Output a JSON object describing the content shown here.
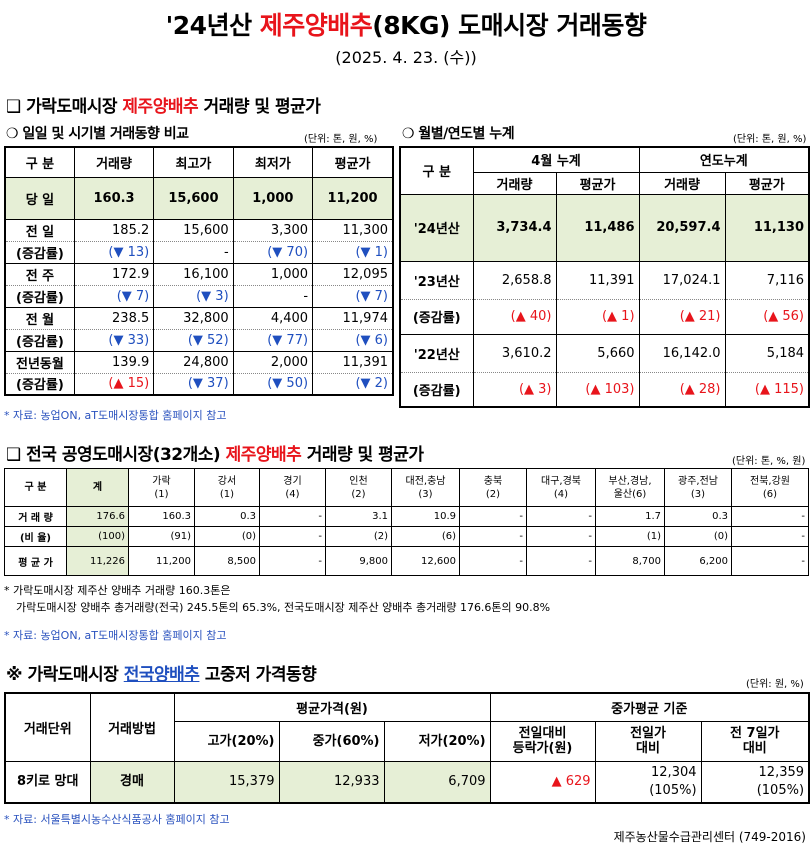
{
  "header": {
    "title_prefix": "'24년산 ",
    "title_red": "제주양배추",
    "title_suffix": "(8KG) 도매시장 거래동향",
    "date": "(2025. 4. 23. (수))"
  },
  "section1": {
    "title_prefix": "❑ 가락도매시장 ",
    "title_red": "제주양배추",
    "title_suffix": " 거래량 및 평균가",
    "daily": {
      "subtitle": "❍ 일일 및 시기별 거래동향 비교",
      "unit": "(단위: 톤, 원, %)",
      "headers": [
        "구 분",
        "거래량",
        "최고가",
        "최저가",
        "평균가"
      ],
      "today": {
        "label": "당 일",
        "values": [
          "160.3",
          "15,600",
          "1,000",
          "11,200"
        ]
      },
      "rows": [
        {
          "label": "전 일",
          "values": [
            "185.2",
            "15,600",
            "3,300",
            "11,300"
          ],
          "sub_label": "(증감률)",
          "changes": [
            "(▼ 13)",
            "-",
            "(▼ 70)",
            "(▼ 1)"
          ]
        },
        {
          "label": "전 주",
          "values": [
            "172.9",
            "16,100",
            "1,000",
            "12,095"
          ],
          "sub_label": "(증감률)",
          "changes": [
            "(▼ 7)",
            "(▼ 3)",
            "-",
            "(▼ 7)"
          ]
        },
        {
          "label": "전 월",
          "values": [
            "238.5",
            "32,800",
            "4,400",
            "11,974"
          ],
          "sub_label": "(증감률)",
          "changes": [
            "(▼ 33)",
            "(▼ 52)",
            "(▼ 77)",
            "(▼ 6)"
          ]
        },
        {
          "label": "전년동월",
          "values": [
            "139.9",
            "24,800",
            "2,000",
            "11,391"
          ],
          "sub_label": "(증감률)",
          "changes": [
            "(▲ 15)",
            "(▼ 37)",
            "(▼ 50)",
            "(▼ 2)"
          ]
        }
      ]
    },
    "monthly": {
      "subtitle": "❍ 월별/연도별 누계",
      "unit": "(단위: 톤, 원, %)",
      "header_label": "구 분",
      "group1": "4월 누계",
      "group2": "연도누계",
      "cols": [
        "거래량",
        "평균가",
        "거래량",
        "평균가"
      ],
      "y24": {
        "label": "'24년산",
        "values": [
          "3,734.4",
          "11,486",
          "20,597.4",
          "11,130"
        ]
      },
      "rows": [
        {
          "label": "'23년산",
          "values": [
            "2,658.8",
            "11,391",
            "17,024.1",
            "7,116"
          ],
          "sub_label": "(증감률)",
          "changes": [
            "(▲ 40)",
            "(▲ 1)",
            "(▲ 21)",
            "(▲ 56)"
          ]
        },
        {
          "label": "'22년산",
          "values": [
            "3,610.2",
            "5,660",
            "16,142.0",
            "5,184"
          ],
          "sub_label": "(증감률)",
          "changes": [
            "(▲ 3)",
            "(▲ 103)",
            "(▲ 28)",
            "(▲ 115)"
          ]
        }
      ]
    },
    "source": "* 자료: 농업ON, aT도매시장통합 홈페이지 참고"
  },
  "section2": {
    "title_prefix": "❑ 전국 공영도매시장(32개소) ",
    "title_red": "제주양배추",
    "title_suffix": " 거래량 및 평균가",
    "unit": "(단위: 톤, %, 원)",
    "headers": [
      "구 분",
      "계",
      "가락\n(1)",
      "강서\n(1)",
      "경기\n(4)",
      "인천\n(2)",
      "대전,충남\n(3)",
      "충북\n(2)",
      "대구,경북\n(4)",
      "부산,경남,\n울산(6)",
      "광주,전남\n(3)",
      "전북,강원\n(6)"
    ],
    "rows": [
      {
        "label": "거 래 량",
        "values": [
          "176.6",
          "160.3",
          "0.3",
          "-",
          "3.1",
          "10.9",
          "-",
          "-",
          "1.7",
          "0.3",
          "-"
        ]
      },
      {
        "label": "(비 율)",
        "values": [
          "(100)",
          "(91)",
          "(0)",
          "-",
          "(2)",
          "(6)",
          "-",
          "-",
          "(1)",
          "(0)",
          "-"
        ]
      },
      {
        "label": "평 균 가",
        "values": [
          "11,226",
          "11,200",
          "8,500",
          "-",
          "9,800",
          "12,600",
          "-",
          "-",
          "8,700",
          "6,200",
          "-"
        ]
      }
    ],
    "note_line1": "* 가락도매시장 제주산 양배추 거래량 160.3톤은",
    "note_line2": "가락도매시장 양배추 총거래량(전국) 245.5톤의 65.3%, 전국도매시장 제주산 양배추 총거래량 176.6톤의 90.8%",
    "source": "* 자료: 농업ON, aT도매시장통합 홈페이지 참고"
  },
  "section3": {
    "title_prefix": "※ 가락도매시장 ",
    "title_blue": "전국양배추",
    "title_suffix": " 고중저 가격동향",
    "unit": "(단위: 원, %)",
    "h_unit": "거래단위",
    "h_method": "거래방법",
    "h_avg": "평균가격(원)",
    "h_mid_std": "중가평균 기준",
    "h_high": "고가(20%)",
    "h_mid": "중가(60%)",
    "h_low": "저가(20%)",
    "h_prev_day_change": "전일대비\n등락가(원)",
    "h_prev_day": "전일가\n대비",
    "h_prev_week": "전 7일가\n대비",
    "row": {
      "unit": "8키로 망대",
      "method": "경매",
      "high": "15,379",
      "mid": "12,933",
      "low": "6,709",
      "change": "▲ 629",
      "prev_day_price": "12,304",
      "prev_day_pct": "(105%)",
      "prev_week_price": "12,359",
      "prev_week_pct": "(105%)"
    },
    "source": "* 자료: 서울특별시농수산식품공사 홈페이지 참고"
  },
  "footer": "제주농산물수급관리센터 (749-2016)"
}
